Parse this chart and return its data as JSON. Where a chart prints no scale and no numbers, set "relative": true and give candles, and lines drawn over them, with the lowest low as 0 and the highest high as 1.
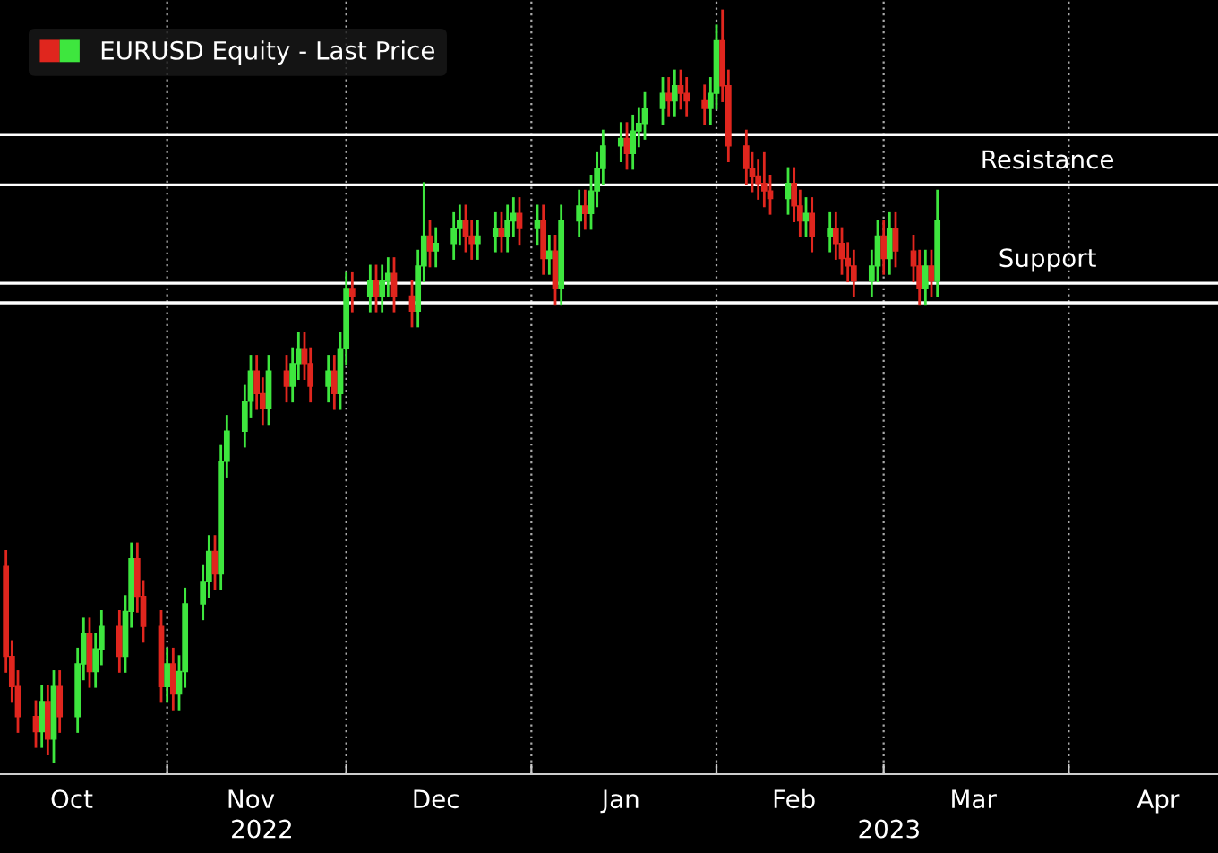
{
  "chart_data": {
    "type": "candlestick",
    "relative": true,
    "x": [
      "2022-10-05",
      "2022-10-06",
      "2022-10-07",
      "2022-10-10",
      "2022-10-11",
      "2022-10-12",
      "2022-10-13",
      "2022-10-14",
      "2022-10-17",
      "2022-10-18",
      "2022-10-19",
      "2022-10-20",
      "2022-10-21",
      "2022-10-24",
      "2022-10-25",
      "2022-10-26",
      "2022-10-27",
      "2022-10-28",
      "2022-10-31",
      "2022-11-01",
      "2022-11-02",
      "2022-11-03",
      "2022-11-04",
      "2022-11-07",
      "2022-11-08",
      "2022-11-09",
      "2022-11-10",
      "2022-11-11",
      "2022-11-14",
      "2022-11-15",
      "2022-11-16",
      "2022-11-17",
      "2022-11-18",
      "2022-11-21",
      "2022-11-22",
      "2022-11-23",
      "2022-11-24",
      "2022-11-25",
      "2022-11-28",
      "2022-11-29",
      "2022-11-30",
      "2022-12-01",
      "2022-12-02",
      "2022-12-05",
      "2022-12-06",
      "2022-12-07",
      "2022-12-08",
      "2022-12-09",
      "2022-12-12",
      "2022-12-13",
      "2022-12-14",
      "2022-12-15",
      "2022-12-16",
      "2022-12-19",
      "2022-12-20",
      "2022-12-21",
      "2022-12-22",
      "2022-12-23",
      "2022-12-26",
      "2022-12-27",
      "2022-12-28",
      "2022-12-29",
      "2022-12-30",
      "2023-01-02",
      "2023-01-03",
      "2023-01-04",
      "2023-01-05",
      "2023-01-06",
      "2023-01-09",
      "2023-01-10",
      "2023-01-11",
      "2023-01-12",
      "2023-01-13",
      "2023-01-16",
      "2023-01-17",
      "2023-01-18",
      "2023-01-19",
      "2023-01-20",
      "2023-01-23",
      "2023-01-24",
      "2023-01-25",
      "2023-01-26",
      "2023-01-27",
      "2023-01-30",
      "2023-01-31",
      "2023-02-01",
      "2023-02-02",
      "2023-02-03",
      "2023-02-06",
      "2023-02-07",
      "2023-02-08",
      "2023-02-09",
      "2023-02-10",
      "2023-02-13",
      "2023-02-14",
      "2023-02-15",
      "2023-02-16",
      "2023-02-17",
      "2023-02-20",
      "2023-02-21",
      "2023-02-22",
      "2023-02-23",
      "2023-02-24",
      "2023-02-27",
      "2023-02-28",
      "2023-03-01",
      "2023-03-02",
      "2023-03-03",
      "2023-03-06",
      "2023-03-07",
      "2023-03-08",
      "2023-03-09",
      "2023-03-10"
    ],
    "series": [
      {
        "name": "EURUSD Equity - Last Price",
        "colors": [
          "#e0261e",
          "#e0261e",
          "#e0261e",
          "#e0261e",
          "#3ee63e",
          "#e0261e",
          "#3ee63e",
          "#e0261e",
          "#3ee63e",
          "#3ee63e",
          "#e0261e",
          "#3ee63e",
          "#3ee63e",
          "#e0261e",
          "#3ee63e",
          "#3ee63e",
          "#e0261e",
          "#e0261e",
          "#e0261e",
          "#3ee63e",
          "#e0261e",
          "#3ee63e",
          "#3ee63e",
          "#3ee63e",
          "#3ee63e",
          "#e0261e",
          "#3ee63e",
          "#3ee63e",
          "#3ee63e",
          "#3ee63e",
          "#e0261e",
          "#e0261e",
          "#3ee63e",
          "#e0261e",
          "#3ee63e",
          "#3ee63e",
          "#e0261e",
          "#e0261e",
          "#3ee63e",
          "#e0261e",
          "#3ee63e",
          "#3ee63e",
          "#e0261e",
          "#3ee63e",
          "#e0261e",
          "#3ee63e",
          "#3ee63e",
          "#e0261e",
          "#e0261e",
          "#3ee63e",
          "#3ee63e",
          "#e0261e",
          "#3ee63e",
          "#3ee63e",
          "#3ee63e",
          "#e0261e",
          "#e0261e",
          "#3ee63e",
          "#3ee63e",
          "#e0261e",
          "#3ee63e",
          "#3ee63e",
          "#e0261e",
          "#3ee63e",
          "#e0261e",
          "#3ee63e",
          "#e0261e",
          "#3ee63e",
          "#3ee63e",
          "#e0261e",
          "#3ee63e",
          "#3ee63e",
          "#3ee63e",
          "#3ee63e",
          "#e0261e",
          "#3ee63e",
          "#3ee63e",
          "#3ee63e",
          "#3ee63e",
          "#e0261e",
          "#3ee63e",
          "#e0261e",
          "#e0261e",
          "#e0261e",
          "#3ee63e",
          "#3ee63e",
          "#e0261e",
          "#e0261e",
          "#e0261e",
          "#e0261e",
          "#e0261e",
          "#e0261e",
          "#e0261e",
          "#3ee63e",
          "#e0261e",
          "#e0261e",
          "#3ee63e",
          "#e0261e",
          "#3ee63e",
          "#e0261e",
          "#e0261e",
          "#e0261e",
          "#e0261e",
          "#3ee63e",
          "#3ee63e",
          "#e0261e",
          "#3ee63e",
          "#e0261e",
          "#e0261e",
          "#e0261e",
          "#3ee63e",
          "#e0261e",
          "#3ee63e"
        ],
        "ohlc": [
          [
            0.26,
            0.28,
            0.12,
            0.14
          ],
          [
            0.14,
            0.16,
            0.08,
            0.1
          ],
          [
            0.1,
            0.12,
            0.04,
            0.06
          ],
          [
            0.06,
            0.08,
            0.02,
            0.04
          ],
          [
            0.04,
            0.1,
            0.02,
            0.08
          ],
          [
            0.08,
            0.1,
            0.01,
            0.03
          ],
          [
            0.03,
            0.12,
            0.0,
            0.1
          ],
          [
            0.1,
            0.12,
            0.04,
            0.06
          ],
          [
            0.06,
            0.15,
            0.04,
            0.13
          ],
          [
            0.13,
            0.19,
            0.11,
            0.17
          ],
          [
            0.17,
            0.19,
            0.1,
            0.12
          ],
          [
            0.12,
            0.17,
            0.1,
            0.15
          ],
          [
            0.15,
            0.2,
            0.13,
            0.18
          ],
          [
            0.18,
            0.2,
            0.12,
            0.14
          ],
          [
            0.14,
            0.22,
            0.12,
            0.2
          ],
          [
            0.2,
            0.29,
            0.18,
            0.27
          ],
          [
            0.27,
            0.29,
            0.2,
            0.22
          ],
          [
            0.22,
            0.24,
            0.16,
            0.18
          ],
          [
            0.18,
            0.2,
            0.08,
            0.1
          ],
          [
            0.1,
            0.15,
            0.08,
            0.13
          ],
          [
            0.13,
            0.15,
            0.07,
            0.09
          ],
          [
            0.09,
            0.14,
            0.07,
            0.12
          ],
          [
            0.12,
            0.23,
            0.1,
            0.21
          ],
          [
            0.21,
            0.26,
            0.19,
            0.24
          ],
          [
            0.24,
            0.3,
            0.22,
            0.28
          ],
          [
            0.28,
            0.3,
            0.23,
            0.25
          ],
          [
            0.25,
            0.42,
            0.23,
            0.4
          ],
          [
            0.4,
            0.46,
            0.38,
            0.44
          ],
          [
            0.44,
            0.5,
            0.42,
            0.48
          ],
          [
            0.48,
            0.54,
            0.46,
            0.52
          ],
          [
            0.52,
            0.54,
            0.47,
            0.49
          ],
          [
            0.49,
            0.51,
            0.45,
            0.47
          ],
          [
            0.47,
            0.54,
            0.45,
            0.52
          ],
          [
            0.52,
            0.54,
            0.48,
            0.5
          ],
          [
            0.5,
            0.55,
            0.48,
            0.53
          ],
          [
            0.53,
            0.57,
            0.51,
            0.55
          ],
          [
            0.55,
            0.57,
            0.51,
            0.53
          ],
          [
            0.53,
            0.55,
            0.48,
            0.5
          ],
          [
            0.5,
            0.54,
            0.48,
            0.52
          ],
          [
            0.52,
            0.54,
            0.47,
            0.49
          ],
          [
            0.49,
            0.57,
            0.47,
            0.55
          ],
          [
            0.55,
            0.65,
            0.53,
            0.63
          ],
          [
            0.63,
            0.65,
            0.6,
            0.62
          ],
          [
            0.62,
            0.66,
            0.6,
            0.64
          ],
          [
            0.64,
            0.66,
            0.6,
            0.62
          ],
          [
            0.62,
            0.66,
            0.6,
            0.64
          ],
          [
            0.64,
            0.67,
            0.62,
            0.65
          ],
          [
            0.65,
            0.67,
            0.6,
            0.62
          ],
          [
            0.62,
            0.64,
            0.58,
            0.6
          ],
          [
            0.6,
            0.68,
            0.58,
            0.66
          ],
          [
            0.66,
            0.77,
            0.64,
            0.7
          ],
          [
            0.7,
            0.72,
            0.66,
            0.68
          ],
          [
            0.68,
            0.71,
            0.66,
            0.69
          ],
          [
            0.69,
            0.73,
            0.67,
            0.71
          ],
          [
            0.71,
            0.74,
            0.69,
            0.72
          ],
          [
            0.72,
            0.74,
            0.68,
            0.7
          ],
          [
            0.7,
            0.72,
            0.67,
            0.69
          ],
          [
            0.69,
            0.72,
            0.67,
            0.7
          ],
          [
            0.7,
            0.73,
            0.68,
            0.71
          ],
          [
            0.71,
            0.73,
            0.68,
            0.7
          ],
          [
            0.7,
            0.74,
            0.68,
            0.72
          ],
          [
            0.72,
            0.75,
            0.7,
            0.73
          ],
          [
            0.73,
            0.75,
            0.69,
            0.71
          ],
          [
            0.71,
            0.74,
            0.69,
            0.72
          ],
          [
            0.72,
            0.74,
            0.65,
            0.67
          ],
          [
            0.67,
            0.7,
            0.65,
            0.68
          ],
          [
            0.68,
            0.7,
            0.61,
            0.63
          ],
          [
            0.63,
            0.74,
            0.61,
            0.72
          ],
          [
            0.72,
            0.76,
            0.7,
            0.74
          ],
          [
            0.74,
            0.76,
            0.71,
            0.73
          ],
          [
            0.73,
            0.78,
            0.71,
            0.76
          ],
          [
            0.76,
            0.81,
            0.74,
            0.79
          ],
          [
            0.79,
            0.84,
            0.77,
            0.82
          ],
          [
            0.82,
            0.85,
            0.8,
            0.83
          ],
          [
            0.83,
            0.85,
            0.79,
            0.81
          ],
          [
            0.81,
            0.86,
            0.79,
            0.84
          ],
          [
            0.84,
            0.87,
            0.82,
            0.85
          ],
          [
            0.85,
            0.89,
            0.83,
            0.87
          ],
          [
            0.87,
            0.91,
            0.85,
            0.89
          ],
          [
            0.89,
            0.91,
            0.86,
            0.88
          ],
          [
            0.88,
            0.92,
            0.86,
            0.9
          ],
          [
            0.9,
            0.92,
            0.87,
            0.89
          ],
          [
            0.89,
            0.91,
            0.86,
            0.88
          ],
          [
            0.88,
            0.9,
            0.85,
            0.87
          ],
          [
            0.87,
            0.91,
            0.85,
            0.89
          ],
          [
            0.89,
            0.98,
            0.87,
            0.96
          ],
          [
            0.96,
            1.0,
            0.88,
            0.9
          ],
          [
            0.9,
            0.92,
            0.8,
            0.82
          ],
          [
            0.82,
            0.84,
            0.77,
            0.79
          ],
          [
            0.79,
            0.81,
            0.76,
            0.78
          ],
          [
            0.78,
            0.8,
            0.75,
            0.77
          ],
          [
            0.77,
            0.81,
            0.74,
            0.76
          ],
          [
            0.76,
            0.78,
            0.73,
            0.75
          ],
          [
            0.75,
            0.79,
            0.73,
            0.77
          ],
          [
            0.77,
            0.79,
            0.72,
            0.74
          ],
          [
            0.74,
            0.76,
            0.7,
            0.72
          ],
          [
            0.72,
            0.75,
            0.7,
            0.73
          ],
          [
            0.73,
            0.75,
            0.68,
            0.7
          ],
          [
            0.7,
            0.73,
            0.68,
            0.71
          ],
          [
            0.71,
            0.73,
            0.67,
            0.69
          ],
          [
            0.69,
            0.71,
            0.65,
            0.67
          ],
          [
            0.67,
            0.69,
            0.64,
            0.66
          ],
          [
            0.66,
            0.68,
            0.62,
            0.64
          ],
          [
            0.64,
            0.68,
            0.62,
            0.66
          ],
          [
            0.66,
            0.72,
            0.64,
            0.7
          ],
          [
            0.7,
            0.72,
            0.65,
            0.67
          ],
          [
            0.67,
            0.73,
            0.65,
            0.71
          ],
          [
            0.71,
            0.73,
            0.66,
            0.68
          ],
          [
            0.68,
            0.7,
            0.64,
            0.66
          ],
          [
            0.66,
            0.68,
            0.61,
            0.63
          ],
          [
            0.63,
            0.68,
            0.61,
            0.66
          ],
          [
            0.66,
            0.68,
            0.62,
            0.64
          ],
          [
            0.64,
            0.76,
            0.62,
            0.72
          ]
        ]
      }
    ],
    "legend": "top left",
    "xlim": [
      "2022-10-04",
      "2023-04-26"
    ],
    "xticks": [
      {
        "value": "2022-10-16",
        "label": "Oct"
      },
      {
        "value": "2022-11-01",
        "label": null
      },
      {
        "value": "2022-11-15",
        "label": "Nov"
      },
      {
        "value": "2022-12-01",
        "label": null
      },
      {
        "value": "2022-12-16",
        "label": "Dec"
      },
      {
        "value": "2023-01-01",
        "label": null
      },
      {
        "value": "2023-01-16",
        "label": "Jan"
      },
      {
        "value": "2023-02-01",
        "label": null
      },
      {
        "value": "2023-02-14",
        "label": "Feb"
      },
      {
        "value": "2023-03-01",
        "label": null
      },
      {
        "value": "2023-03-16",
        "label": "Mar"
      },
      {
        "value": "2023-04-01",
        "label": null
      },
      {
        "value": "2023-04-16",
        "label": "Apr"
      }
    ],
    "annotations": [
      "2022",
      "2023"
    ],
    "grid": "x",
    "ref_lines": [
      {
        "axis": "y",
        "value": 0.835,
        "label": null,
        "color": "#ffffff"
      },
      {
        "axis": "y",
        "value": 0.768,
        "label": "Resistance",
        "color": "#ffffff"
      },
      {
        "axis": "y",
        "value": 0.637,
        "label": "Support",
        "color": "#ffffff"
      },
      {
        "axis": "y",
        "value": 0.611,
        "label": null,
        "color": "#ffffff"
      }
    ]
  }
}
